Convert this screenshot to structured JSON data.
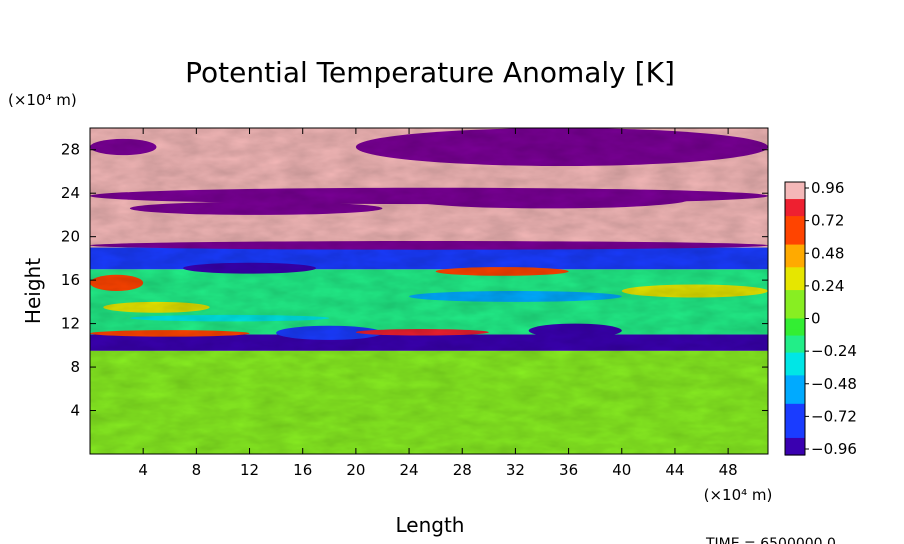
{
  "chart_data": {
    "type": "heatmap",
    "title": "Potential Temperature Anomaly [K]",
    "xlabel": "Length",
    "ylabel": "Height",
    "x_unit": "(×10⁴ m)",
    "y_unit": "(×10⁴ m)",
    "xlim": [
      0,
      51
    ],
    "ylim": [
      0,
      30
    ],
    "x_ticks": [
      "4",
      "8",
      "12",
      "16",
      "20",
      "24",
      "28",
      "32",
      "36",
      "40",
      "44",
      "48"
    ],
    "x_tick_values": [
      4,
      8,
      12,
      16,
      20,
      24,
      28,
      32,
      36,
      40,
      44,
      48
    ],
    "y_ticks": [
      "4",
      "8",
      "12",
      "16",
      "20",
      "24",
      "28"
    ],
    "y_tick_values": [
      4,
      8,
      12,
      16,
      20,
      24,
      28
    ],
    "colorbar": {
      "labels": [
        "0.96",
        "0.72",
        "0.48",
        "0.24",
        "0",
        "−0.24",
        "−0.48",
        "−0.72",
        "−0.96"
      ],
      "values": [
        0.96,
        0.72,
        0.48,
        0.24,
        0,
        -0.24,
        -0.48,
        -0.72,
        -0.96
      ],
      "range": [
        -0.96,
        0.96
      ]
    },
    "field_bands": [
      {
        "y_range": [
          0,
          9.5
        ],
        "anomaly": 0.1
      },
      {
        "y_range": [
          9.5,
          11
        ],
        "anomaly": -0.9
      },
      {
        "y_range": [
          11,
          17
        ],
        "anomaly": -0.1
      },
      {
        "y_range": [
          17,
          19
        ],
        "anomaly": -0.8
      },
      {
        "y_range": [
          19,
          30
        ],
        "anomaly": 0.96
      }
    ],
    "time_label": "TIME = 6500000.0"
  },
  "colors": {
    "pink": "#f4b8b8",
    "purple": "#8b00a0",
    "green": "#33ee33"
  }
}
